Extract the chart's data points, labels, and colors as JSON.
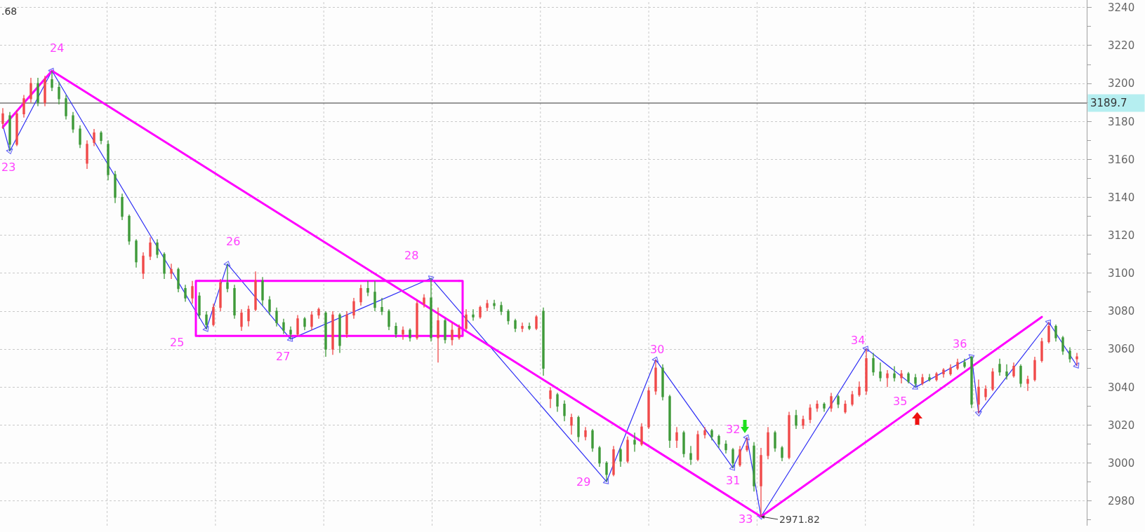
{
  "chart_data": {
    "type": "candlestick",
    "categories": [
      null,
      null,
      null,
      null,
      null,
      null,
      null,
      null,
      null,
      null,
      null,
      null,
      null,
      null,
      null,
      null,
      null,
      null,
      null,
      null,
      null,
      null,
      null,
      null,
      null,
      null,
      null,
      null,
      null,
      null,
      null,
      null,
      null,
      null,
      null,
      null,
      null,
      null,
      null,
      null,
      null,
      null,
      null,
      null,
      null,
      null,
      null,
      null,
      null,
      null,
      null,
      null,
      null,
      null,
      null,
      null,
      null,
      null,
      null,
      null,
      null,
      null,
      null,
      null,
      null,
      null,
      null,
      null,
      null,
      null,
      null,
      null,
      null,
      null,
      null,
      null,
      null,
      null,
      null,
      null,
      null,
      null,
      null,
      null,
      null,
      null,
      null,
      null,
      null,
      null,
      null,
      null,
      null,
      null,
      null,
      null,
      null,
      null,
      null,
      null,
      null,
      null,
      null,
      null,
      null,
      null,
      null,
      null,
      null,
      null,
      null,
      null,
      null,
      null,
      null,
      null,
      null,
      null,
      null,
      null,
      null,
      null,
      null,
      null,
      null,
      null,
      null,
      null,
      null,
      null,
      null,
      null,
      null,
      null,
      null,
      null,
      null,
      null,
      null,
      null,
      null,
      null,
      null,
      null,
      null,
      null,
      null,
      null,
      null,
      null,
      null,
      null,
      null,
      null
    ],
    "ohlc": [
      [
        3179,
        3187,
        3176,
        3184
      ],
      [
        3183,
        3185,
        3164.4,
        3168
      ],
      [
        3168,
        3186,
        3167,
        3184
      ],
      [
        3184,
        3194,
        3182,
        3192
      ],
      [
        3192,
        3203,
        3190,
        3200
      ],
      [
        3200,
        3203,
        3188,
        3190
      ],
      [
        3190,
        3204,
        3188,
        3202
      ],
      [
        3202,
        3206.7,
        3196,
        3198
      ],
      [
        3198,
        3201,
        3189,
        3192
      ],
      [
        3192,
        3194,
        3181,
        3183
      ],
      [
        3183,
        3185,
        3174,
        3176
      ],
      [
        3176,
        3178,
        3166,
        3168
      ],
      [
        3158,
        3170,
        3155,
        3168
      ],
      [
        3169,
        3176,
        3167,
        3174
      ],
      [
        3174,
        3175,
        3168,
        3170
      ],
      [
        3168,
        3170,
        3149,
        3152
      ],
      [
        3152,
        3154,
        3137,
        3140
      ],
      [
        3140,
        3142,
        3128,
        3130
      ],
      [
        3130,
        3131,
        3115,
        3117
      ],
      [
        3117,
        3118,
        3103,
        3106
      ],
      [
        3100,
        3111,
        3097,
        3109
      ],
      [
        3109,
        3119,
        3107,
        3116
      ],
      [
        3116,
        3118,
        3108,
        3110
      ],
      [
        3110,
        3111,
        3097,
        3100
      ],
      [
        3100,
        3105,
        3097,
        3102
      ],
      [
        3102,
        3103,
        3090,
        3092
      ],
      [
        3092,
        3094,
        3085,
        3087
      ],
      [
        3087,
        3096,
        3084,
        3093
      ],
      [
        3088,
        3090,
        3076,
        3078
      ],
      [
        3078,
        3080,
        3070.6,
        3073
      ],
      [
        3073,
        3084,
        3072,
        3082
      ],
      [
        3082,
        3097,
        3080,
        3095
      ],
      [
        3095,
        3104.9,
        3090,
        3092
      ],
      [
        3092,
        3094,
        3076,
        3078
      ],
      [
        3072,
        3081,
        3069.7,
        3079
      ],
      [
        3075,
        3083,
        3072,
        3081
      ],
      [
        3081,
        3101,
        3080,
        3096
      ],
      [
        3096,
        3098,
        3083,
        3086
      ],
      [
        3086,
        3088,
        3078,
        3080
      ],
      [
        3080,
        3082,
        3072,
        3074
      ],
      [
        3074,
        3076,
        3068,
        3070
      ],
      [
        3070,
        3072,
        3065.3,
        3068
      ],
      [
        3068,
        3078,
        3067,
        3076
      ],
      [
        3076,
        3077,
        3070,
        3072
      ],
      [
        3072,
        3080,
        3070,
        3078
      ],
      [
        3078,
        3082,
        3076,
        3081
      ],
      [
        3079,
        3080,
        3056,
        3060
      ],
      [
        3060,
        3080,
        3057,
        3078
      ],
      [
        3078,
        3079,
        3058,
        3062
      ],
      [
        3068,
        3080,
        3066,
        3078
      ],
      [
        3078,
        3087,
        3076,
        3085
      ],
      [
        3085,
        3094,
        3083,
        3092
      ],
      [
        3092,
        3096,
        3088,
        3090
      ],
      [
        3090,
        3096,
        3080,
        3082
      ],
      [
        3082,
        3087,
        3078,
        3080
      ],
      [
        3080,
        3081,
        3070,
        3072
      ],
      [
        3072,
        3074,
        3066,
        3068
      ],
      [
        3068,
        3072,
        3065,
        3070
      ],
      [
        3070,
        3071,
        3064,
        3066
      ],
      [
        3066,
        3086,
        3065,
        3084
      ],
      [
        3084,
        3089,
        3082,
        3087
      ],
      [
        3087,
        3097.4,
        3064,
        3066
      ],
      [
        3066,
        3082,
        3053,
        3075
      ],
      [
        3075,
        3076,
        3063,
        3065
      ],
      [
        3065,
        3074,
        3062,
        3070
      ],
      [
        3066,
        3073,
        3065,
        3071
      ],
      [
        3071,
        3081,
        3070,
        3078
      ],
      [
        3078,
        3081,
        3075,
        3077
      ],
      [
        3077,
        3083,
        3076,
        3082
      ],
      [
        3082,
        3086,
        3080,
        3084
      ],
      [
        3084,
        3086,
        3081,
        3083
      ],
      [
        3083,
        3085,
        3078,
        3080
      ],
      [
        3080,
        3081,
        3073,
        3075
      ],
      [
        3075,
        3076,
        3069,
        3071
      ],
      [
        3071,
        3074,
        3069,
        3072
      ],
      [
        3072,
        3074,
        3070,
        3071
      ],
      [
        3071,
        3078,
        3070,
        3077
      ],
      [
        3080,
        3082,
        3046,
        3050
      ],
      [
        3034,
        3040,
        3029,
        3038
      ],
      [
        3036,
        3037,
        3027,
        3030
      ],
      [
        3031,
        3033,
        3022,
        3025
      ],
      [
        3020,
        3026,
        3015,
        3024
      ],
      [
        3024,
        3025,
        3011,
        3014
      ],
      [
        3014,
        3019,
        3012,
        3017
      ],
      [
        3017,
        3018,
        3006,
        3008
      ],
      [
        3008,
        3009,
        2998,
        3000
      ],
      [
        3000,
        3001,
        2990.2,
        2994
      ],
      [
        2994,
        3009,
        2993,
        3007
      ],
      [
        3007,
        3008,
        2998,
        3001
      ],
      [
        3001,
        3014,
        3000,
        3012
      ],
      [
        3012,
        3016,
        3006,
        3010
      ],
      [
        3010,
        3021,
        3009,
        3019
      ],
      [
        3019,
        3040,
        3018,
        3038
      ],
      [
        3038,
        3054.5,
        3036,
        3050
      ],
      [
        3050,
        3052,
        3033,
        3035
      ],
      [
        3035,
        3036,
        3008,
        3012
      ],
      [
        3012,
        3019,
        3008,
        3016
      ],
      [
        3016,
        3017,
        3003,
        3005
      ],
      [
        3005,
        3009,
        2999,
        3002
      ],
      [
        3002,
        3017,
        3001,
        3015
      ],
      [
        3015,
        3019,
        3013,
        3017
      ],
      [
        3017,
        3018,
        3012,
        3014
      ],
      [
        3014,
        3015,
        3008,
        3010
      ],
      [
        3010,
        3012,
        3005,
        3007
      ],
      [
        3007,
        3008,
        2997.4,
        3000
      ],
      [
        2999,
        3009,
        2998,
        3007
      ],
      [
        3007,
        3013.5,
        3006,
        3009
      ],
      [
        3009,
        3011,
        2985,
        2988
      ],
      [
        2988,
        3008,
        2971.82,
        3004
      ],
      [
        3004,
        3019,
        3002,
        3016
      ],
      [
        3016,
        3017,
        3006,
        3008
      ],
      [
        3008,
        3009,
        3001,
        3003
      ],
      [
        3003,
        3027,
        3002,
        3025
      ],
      [
        3025,
        3028,
        3018,
        3020
      ],
      [
        3020,
        3025,
        3018,
        3023
      ],
      [
        3023,
        3031,
        3021,
        3029
      ],
      [
        3029,
        3033,
        3027,
        3031
      ],
      [
        3031,
        3032,
        3027,
        3029
      ],
      [
        3029,
        3037,
        3027,
        3035
      ],
      [
        3035,
        3036,
        3029,
        3031
      ],
      [
        3027,
        3033,
        3026,
        3031
      ],
      [
        3031,
        3038,
        3030,
        3036
      ],
      [
        3036,
        3043,
        3035,
        3040
      ],
      [
        3038,
        3060.3,
        3036,
        3055
      ],
      [
        3055,
        3058,
        3046,
        3048
      ],
      [
        3048,
        3053,
        3043,
        3045
      ],
      [
        3045,
        3049,
        3040,
        3047
      ],
      [
        3047,
        3051,
        3043,
        3045
      ],
      [
        3045,
        3049,
        3042,
        3047
      ],
      [
        3047,
        3048,
        3042,
        3043
      ],
      [
        3045,
        3047,
        3039.9,
        3042
      ],
      [
        3042,
        3047,
        3041,
        3045
      ],
      [
        3045,
        3047,
        3043,
        3044
      ],
      [
        3044,
        3048,
        3043,
        3047
      ],
      [
        3047,
        3050,
        3045,
        3049
      ],
      [
        3047,
        3052,
        3046,
        3050
      ],
      [
        3050,
        3055,
        3049,
        3053
      ],
      [
        3053,
        3055,
        3050,
        3051
      ],
      [
        3056,
        3056,
        3029,
        3031
      ],
      [
        3031,
        3044,
        3026.3,
        3040
      ],
      [
        3035,
        3041,
        3033,
        3039
      ],
      [
        3039,
        3050,
        3038,
        3048
      ],
      [
        3052,
        3055,
        3046,
        3048
      ],
      [
        3048,
        3052,
        3044,
        3046
      ],
      [
        3046,
        3053,
        3045,
        3051
      ],
      [
        3051,
        3052,
        3040,
        3042
      ],
      [
        3042,
        3046,
        3038,
        3044
      ],
      [
        3044,
        3056,
        3043,
        3054
      ],
      [
        3054,
        3066,
        3053,
        3064
      ],
      [
        3064,
        3074.2,
        3063,
        3072
      ],
      [
        3072,
        3073,
        3064,
        3066
      ],
      [
        3066,
        3067,
        3057,
        3059
      ],
      [
        3059,
        3061,
        3053,
        3055
      ],
      [
        3055,
        3058,
        3051.3,
        3056
      ]
    ],
    "series": [
      {
        "type": "line",
        "color": "#2f2ff5",
        "marker": "triangle",
        "values": [
          3178,
          3164.4,
          null,
          null,
          null,
          null,
          null,
          3206.7,
          null,
          null,
          null,
          null,
          null,
          null,
          null,
          null,
          null,
          null,
          null,
          null,
          null,
          null,
          null,
          null,
          null,
          null,
          null,
          null,
          null,
          3070.6,
          null,
          null,
          3104.9,
          null,
          null,
          null,
          null,
          null,
          null,
          null,
          null,
          3065.3,
          null,
          null,
          null,
          null,
          null,
          null,
          null,
          null,
          null,
          null,
          null,
          null,
          null,
          null,
          null,
          null,
          null,
          null,
          null,
          3097.4,
          null,
          null,
          null,
          null,
          null,
          null,
          null,
          null,
          null,
          null,
          null,
          null,
          null,
          null,
          null,
          null,
          null,
          null,
          null,
          null,
          null,
          null,
          null,
          null,
          2990.2,
          null,
          null,
          null,
          null,
          null,
          null,
          3054.5,
          null,
          null,
          null,
          null,
          null,
          null,
          null,
          null,
          null,
          null,
          2997.4,
          null,
          3013.5,
          null,
          2971.82,
          null,
          null,
          null,
          null,
          null,
          null,
          null,
          null,
          null,
          null,
          null,
          null,
          null,
          null,
          3060.3,
          null,
          null,
          null,
          null,
          null,
          null,
          3039.9,
          null,
          null,
          null,
          null,
          null,
          null,
          null,
          3056,
          3026.3,
          null,
          null,
          null,
          null,
          null,
          null,
          null,
          null,
          null,
          3074.2,
          null,
          null,
          null,
          3051.3
        ]
      },
      {
        "type": "line",
        "color": "#ff00ff",
        "values": [
          3177,
          null,
          null,
          null,
          null,
          null,
          null,
          3206.7,
          null,
          null,
          null,
          null,
          null,
          null,
          null,
          null,
          null,
          null,
          null,
          null,
          null,
          null,
          null,
          null,
          null,
          null,
          null,
          null,
          null,
          null,
          null,
          null,
          null,
          null,
          null,
          null,
          null,
          null,
          null,
          null,
          null,
          null,
          null,
          null,
          null,
          null,
          null,
          null,
          null,
          null,
          null,
          null,
          null,
          null,
          null,
          null,
          null,
          null,
          null,
          null,
          null,
          null,
          null,
          null,
          null,
          null,
          null,
          null,
          null,
          null,
          null,
          null,
          null,
          null,
          null,
          null,
          null,
          null,
          null,
          null,
          null,
          null,
          null,
          null,
          null,
          null,
          null,
          null,
          null,
          null,
          null,
          null,
          null,
          null,
          null,
          null,
          null,
          null,
          null,
          null,
          null,
          null,
          null,
          null,
          null,
          null,
          null,
          null,
          2971.82,
          null,
          null,
          null,
          null,
          null,
          null,
          null,
          null,
          null,
          null,
          null,
          null,
          null,
          null,
          null,
          null,
          null,
          null,
          null,
          null,
          null,
          null,
          null,
          null,
          null,
          null,
          null,
          null,
          null,
          null,
          null,
          null,
          null,
          null,
          null,
          null,
          null,
          null,
          null,
          3077,
          null,
          null,
          null,
          null,
          null
        ]
      },
      {
        "type": "line",
        "color": "#ff00ff",
        "values": [
          null,
          null,
          null,
          null,
          null,
          null,
          null,
          null,
          null,
          null,
          null,
          null,
          null,
          null,
          null,
          null,
          null,
          null,
          null,
          null,
          null,
          null,
          null,
          null,
          null,
          null,
          null,
          null,
          3096,
          null,
          null,
          null,
          null,
          null,
          null,
          null,
          null,
          null,
          null,
          null,
          null,
          null,
          null,
          null,
          null,
          null,
          null,
          null,
          null,
          null,
          null,
          null,
          null,
          null,
          null,
          null,
          null,
          null,
          null,
          null,
          null,
          null,
          null,
          null,
          null,
          3096,
          null,
          null,
          null,
          null,
          null,
          null,
          null,
          null,
          null,
          null,
          null,
          null,
          null,
          null,
          null,
          null,
          null,
          null,
          null,
          null,
          null,
          null,
          null,
          null,
          null,
          null,
          null,
          null,
          null,
          null,
          null,
          null,
          null,
          null,
          null,
          null,
          null,
          null,
          null,
          null,
          null,
          null,
          null,
          null,
          null,
          null,
          null,
          null,
          null,
          null,
          null,
          null,
          null,
          null,
          null,
          null,
          null,
          null,
          null,
          null,
          null,
          null,
          null,
          null,
          null,
          null,
          null,
          null,
          null,
          null,
          null,
          null,
          null,
          null,
          null,
          null,
          null,
          null,
          null,
          null,
          null,
          null,
          null,
          null,
          null,
          null,
          null,
          null
        ]
      },
      {
        "type": "line",
        "color": "#ff00ff",
        "values": [
          null,
          null,
          null,
          null,
          null,
          null,
          null,
          null,
          null,
          null,
          null,
          null,
          null,
          null,
          null,
          null,
          null,
          null,
          null,
          null,
          null,
          null,
          null,
          null,
          null,
          null,
          null,
          null,
          3067,
          null,
          null,
          null,
          null,
          null,
          null,
          null,
          null,
          null,
          null,
          null,
          null,
          null,
          null,
          null,
          null,
          null,
          null,
          null,
          null,
          null,
          null,
          null,
          null,
          null,
          null,
          null,
          null,
          null,
          null,
          null,
          null,
          null,
          null,
          null,
          null,
          3067,
          null,
          null,
          null,
          null,
          null,
          null,
          null,
          null,
          null,
          null,
          null,
          null,
          null,
          null,
          null,
          null,
          null,
          null,
          null,
          null,
          null,
          null,
          null,
          null,
          null,
          null,
          null,
          null,
          null,
          null,
          null,
          null,
          null,
          null,
          null,
          null,
          null,
          null,
          null,
          null,
          null,
          null,
          null,
          null,
          null,
          null,
          null,
          null,
          null,
          null,
          null,
          null,
          null,
          null,
          null,
          null,
          null,
          null,
          null,
          null,
          null,
          null,
          null,
          null,
          null,
          null,
          null,
          null,
          null,
          null,
          null,
          null,
          null,
          null,
          null,
          null,
          null,
          null,
          null,
          null,
          null,
          null,
          null,
          null,
          null,
          null,
          null,
          null
        ]
      }
    ],
    "ylim": [
      2967,
      3244
    ],
    "yticks": [
      {
        "value": 2970,
        "label": null
      },
      2980,
      {
        "value": 2990,
        "label": null
      },
      3000,
      {
        "value": 3010,
        "label": null
      },
      3020,
      {
        "value": 3030,
        "label": null
      },
      3040,
      {
        "value": 3050,
        "label": null
      },
      3060,
      {
        "value": 3070,
        "label": null
      },
      3080,
      {
        "value": 3090,
        "label": null
      },
      3100,
      {
        "value": 3110,
        "label": null
      },
      3120,
      {
        "value": 3130,
        "label": null
      },
      3140,
      {
        "value": 3150,
        "label": null
      },
      3160,
      {
        "value": 3170,
        "label": null
      },
      3180,
      {
        "value": 3190,
        "label": null
      },
      3200,
      {
        "value": 3210,
        "label": null
      },
      3220,
      {
        "value": 3230,
        "label": null
      },
      3240
    ],
    "grid": "y",
    "tick_labels": "y",
    "line_style": "solid",
    "ref_lines": [
      {
        "axis": "y",
        "value": 3189.7,
        "label": "3189.7",
        "color": "#333333"
      }
    ],
    "annotations": [
      ".68",
      "23",
      "24",
      "25",
      "26",
      "27",
      "28",
      "29",
      "30",
      "31",
      "32",
      "33",
      "34",
      "35",
      "36",
      "2971.82"
    ]
  }
}
